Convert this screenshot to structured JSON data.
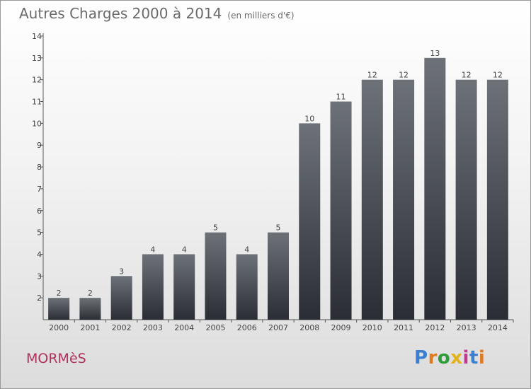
{
  "header": {
    "title": "Autres Charges 2000 à 2014",
    "subtitle": "(en milliers d'€)"
  },
  "footer": {
    "commune": "MORMèS",
    "brand": "Proxiti"
  },
  "colors": {
    "bar_top": "#6d7178",
    "bar_bottom": "#2a2e34",
    "commune": "#b0305e",
    "brand_letters": [
      "#3a7fd0",
      "#e07a1f",
      "#2e9c3a",
      "#e2b21a",
      "#c0398e",
      "#3a7fd0",
      "#e07a1f"
    ]
  },
  "chart_data": {
    "type": "bar",
    "title": "Autres Charges 2000 à 2014",
    "subtitle": "(en milliers d'€)",
    "xlabel": "",
    "ylabel": "",
    "categories": [
      "2000",
      "2001",
      "2002",
      "2003",
      "2004",
      "2005",
      "2006",
      "2007",
      "2008",
      "2009",
      "2010",
      "2011",
      "2012",
      "2013",
      "2014"
    ],
    "values": [
      2,
      2,
      3,
      4,
      4,
      5,
      4,
      5,
      10,
      11,
      12,
      12,
      13,
      12,
      12
    ],
    "ylim": [
      1,
      14
    ],
    "yticks": [
      2,
      3,
      4,
      5,
      6,
      7,
      8,
      9,
      10,
      11,
      12,
      13,
      14
    ],
    "grid": false,
    "data_labels": true
  }
}
